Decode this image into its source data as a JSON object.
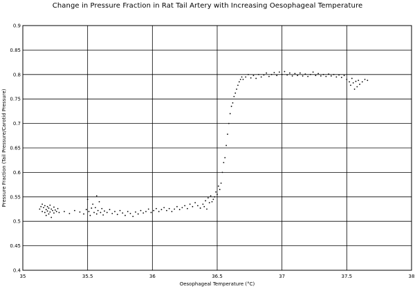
{
  "chart_data": {
    "type": "scatter",
    "title": "Change in Pressure Fraction in Rat Tail Artery with Increasing Oesophageal Temperature",
    "xlabel": "Oesophageal Temperature (°C)",
    "ylabel": "Pressure Fraction (Tail Pressure/Carotid Pressure)",
    "xlim": [
      35,
      38
    ],
    "ylim": [
      0.4,
      0.9
    ],
    "x_ticks": [
      "35",
      "35.5",
      "36",
      "36.5",
      "37",
      "37.5",
      "38"
    ],
    "y_ticks": [
      "0.4",
      "0.45",
      "0.5",
      "0.55",
      "0.6",
      "0.65",
      "0.7",
      "0.75",
      "0.8",
      "0.85",
      "0.9"
    ],
    "grid": true,
    "point_color": "#000000",
    "series": [
      {
        "points": [
          [
            35.13,
            0.525
          ],
          [
            35.14,
            0.53
          ],
          [
            35.15,
            0.52
          ],
          [
            35.15,
            0.535
          ],
          [
            35.16,
            0.528
          ],
          [
            35.17,
            0.518
          ],
          [
            35.17,
            0.532
          ],
          [
            35.18,
            0.524
          ],
          [
            35.18,
            0.512
          ],
          [
            35.19,
            0.53
          ],
          [
            35.19,
            0.521
          ],
          [
            35.2,
            0.527
          ],
          [
            35.2,
            0.515
          ],
          [
            35.21,
            0.533
          ],
          [
            35.21,
            0.519
          ],
          [
            35.22,
            0.525
          ],
          [
            35.22,
            0.508
          ],
          [
            35.23,
            0.522
          ],
          [
            35.24,
            0.529
          ],
          [
            35.24,
            0.517
          ],
          [
            35.25,
            0.523
          ],
          [
            35.26,
            0.52
          ],
          [
            35.27,
            0.526
          ],
          [
            35.28,
            0.518
          ],
          [
            35.32,
            0.52
          ],
          [
            35.36,
            0.516
          ],
          [
            35.4,
            0.522
          ],
          [
            35.44,
            0.519
          ],
          [
            35.47,
            0.515
          ],
          [
            35.49,
            0.524
          ],
          [
            35.5,
            0.545
          ],
          [
            35.51,
            0.52
          ],
          [
            35.52,
            0.512
          ],
          [
            35.53,
            0.527
          ],
          [
            35.54,
            0.535
          ],
          [
            35.55,
            0.518
          ],
          [
            35.56,
            0.528
          ],
          [
            35.57,
            0.552
          ],
          [
            35.57,
            0.515
          ],
          [
            35.58,
            0.522
          ],
          [
            35.59,
            0.54
          ],
          [
            35.6,
            0.518
          ],
          [
            35.61,
            0.526
          ],
          [
            35.62,
            0.513
          ],
          [
            35.63,
            0.521
          ],
          [
            35.65,
            0.518
          ],
          [
            35.67,
            0.524
          ],
          [
            35.69,
            0.516
          ],
          [
            35.71,
            0.52
          ],
          [
            35.73,
            0.514
          ],
          [
            35.75,
            0.522
          ],
          [
            35.77,
            0.517
          ],
          [
            35.79,
            0.512
          ],
          [
            35.81,
            0.52
          ],
          [
            35.83,
            0.516
          ],
          [
            35.85,
            0.51
          ],
          [
            35.87,
            0.519
          ],
          [
            35.89,
            0.515
          ],
          [
            35.91,
            0.522
          ],
          [
            35.93,
            0.517
          ],
          [
            35.95,
            0.52
          ],
          [
            35.97,
            0.525
          ],
          [
            35.99,
            0.518
          ],
          [
            36.01,
            0.522
          ],
          [
            36.03,
            0.526
          ],
          [
            36.05,
            0.52
          ],
          [
            36.07,
            0.524
          ],
          [
            36.09,
            0.528
          ],
          [
            36.11,
            0.522
          ],
          [
            36.13,
            0.526
          ],
          [
            36.15,
            0.52
          ],
          [
            36.17,
            0.525
          ],
          [
            36.19,
            0.53
          ],
          [
            36.21,
            0.524
          ],
          [
            36.23,
            0.528
          ],
          [
            36.25,
            0.532
          ],
          [
            36.27,
            0.526
          ],
          [
            36.29,
            0.535
          ],
          [
            36.31,
            0.53
          ],
          [
            36.33,
            0.538
          ],
          [
            36.35,
            0.532
          ],
          [
            36.37,
            0.527
          ],
          [
            36.39,
            0.535
          ],
          [
            36.4,
            0.53
          ],
          [
            36.41,
            0.542
          ],
          [
            36.42,
            0.525
          ],
          [
            36.43,
            0.548
          ],
          [
            36.44,
            0.538
          ],
          [
            36.45,
            0.552
          ],
          [
            36.46,
            0.54
          ],
          [
            36.47,
            0.545
          ],
          [
            36.48,
            0.55
          ],
          [
            36.49,
            0.56
          ],
          [
            36.5,
            0.555
          ],
          [
            36.51,
            0.572
          ],
          [
            36.52,
            0.565
          ],
          [
            36.53,
            0.578
          ],
          [
            36.54,
            0.6
          ],
          [
            36.55,
            0.62
          ],
          [
            36.56,
            0.63
          ],
          [
            36.57,
            0.655
          ],
          [
            36.58,
            0.678
          ],
          [
            36.59,
            0.7
          ],
          [
            36.6,
            0.72
          ],
          [
            36.61,
            0.735
          ],
          [
            36.62,
            0.742
          ],
          [
            36.63,
            0.755
          ],
          [
            36.64,
            0.762
          ],
          [
            36.65,
            0.77
          ],
          [
            36.66,
            0.778
          ],
          [
            36.67,
            0.785
          ],
          [
            36.68,
            0.79
          ],
          [
            36.69,
            0.795
          ],
          [
            36.7,
            0.79
          ],
          [
            36.72,
            0.795
          ],
          [
            36.74,
            0.8
          ],
          [
            36.76,
            0.793
          ],
          [
            36.78,
            0.798
          ],
          [
            36.8,
            0.792
          ],
          [
            36.82,
            0.8
          ],
          [
            36.84,
            0.795
          ],
          [
            36.86,
            0.799
          ],
          [
            36.88,
            0.803
          ],
          [
            36.9,
            0.796
          ],
          [
            36.92,
            0.8
          ],
          [
            36.94,
            0.804
          ],
          [
            36.96,
            0.798
          ],
          [
            36.98,
            0.805
          ],
          [
            37.0,
            0.8
          ],
          [
            37.02,
            0.806
          ],
          [
            37.04,
            0.799
          ],
          [
            37.06,
            0.803
          ],
          [
            37.08,
            0.797
          ],
          [
            37.1,
            0.802
          ],
          [
            37.12,
            0.798
          ],
          [
            37.14,
            0.803
          ],
          [
            37.16,
            0.797
          ],
          [
            37.18,
            0.801
          ],
          [
            37.2,
            0.796
          ],
          [
            37.22,
            0.8
          ],
          [
            37.24,
            0.805
          ],
          [
            37.26,
            0.798
          ],
          [
            37.28,
            0.802
          ],
          [
            37.3,
            0.797
          ],
          [
            37.32,
            0.8
          ],
          [
            37.34,
            0.796
          ],
          [
            37.36,
            0.801
          ],
          [
            37.38,
            0.797
          ],
          [
            37.4,
            0.8
          ],
          [
            37.42,
            0.795
          ],
          [
            37.44,
            0.799
          ],
          [
            37.46,
            0.794
          ],
          [
            37.48,
            0.798
          ],
          [
            37.5,
            0.79
          ],
          [
            37.52,
            0.785
          ],
          [
            37.53,
            0.778
          ],
          [
            37.54,
            0.792
          ],
          [
            37.55,
            0.783
          ],
          [
            37.56,
            0.77
          ],
          [
            37.57,
            0.786
          ],
          [
            37.58,
            0.775
          ],
          [
            37.59,
            0.788
          ],
          [
            37.6,
            0.78
          ],
          [
            37.62,
            0.785
          ],
          [
            37.64,
            0.79
          ],
          [
            37.66,
            0.788
          ]
        ]
      }
    ]
  }
}
